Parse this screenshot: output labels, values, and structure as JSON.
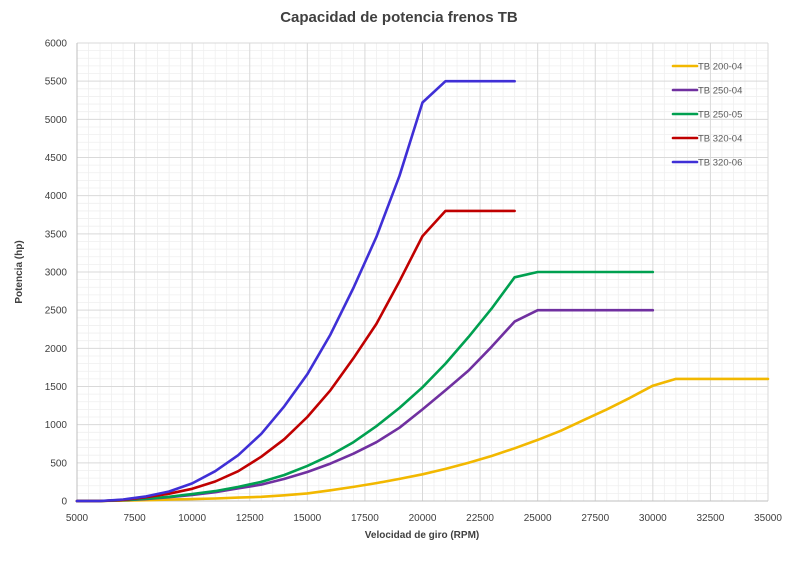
{
  "chart_data": {
    "type": "line",
    "title": "Capacidad de potencia frenos TB",
    "xlabel": "Velocidad de giro (RPM)",
    "ylabel": "Potencia (hp)",
    "xlim": [
      5000,
      35000
    ],
    "ylim": [
      0,
      6000
    ],
    "x_ticks": [
      5000,
      7500,
      10000,
      12500,
      15000,
      17500,
      20000,
      22500,
      25000,
      27500,
      30000,
      32500,
      35000
    ],
    "y_ticks": [
      0,
      500,
      1000,
      1500,
      2000,
      2500,
      3000,
      3500,
      4000,
      4500,
      5000,
      5500,
      6000
    ],
    "x_tick_labels": [
      "5000",
      "7500",
      "10000",
      "12500",
      "15000",
      "17500",
      "20000",
      "22500",
      "25000",
      "27500",
      "30000",
      "32500",
      "35000"
    ],
    "y_tick_labels": [
      "0",
      "500",
      "1000",
      "1500",
      "2000",
      "2500",
      "3000",
      "3500",
      "4000",
      "4500",
      "5000",
      "5500",
      "6000"
    ],
    "grid": true,
    "legend_position": "top-right",
    "series": [
      {
        "name": "TB 200-04",
        "color": "#f2b800",
        "points": [
          [
            5000,
            0
          ],
          [
            6000,
            0
          ],
          [
            7000,
            5
          ],
          [
            8000,
            10
          ],
          [
            9000,
            18
          ],
          [
            10000,
            25
          ],
          [
            11000,
            33
          ],
          [
            12000,
            45
          ],
          [
            13000,
            55
          ],
          [
            14000,
            75
          ],
          [
            15000,
            100
          ],
          [
            16000,
            140
          ],
          [
            17000,
            185
          ],
          [
            18000,
            235
          ],
          [
            19000,
            290
          ],
          [
            20000,
            350
          ],
          [
            21000,
            420
          ],
          [
            22000,
            500
          ],
          [
            23000,
            590
          ],
          [
            24000,
            690
          ],
          [
            25000,
            800
          ],
          [
            26000,
            920
          ],
          [
            27000,
            1060
          ],
          [
            28000,
            1200
          ],
          [
            29000,
            1350
          ],
          [
            30000,
            1510
          ],
          [
            31000,
            1600
          ],
          [
            32000,
            1600
          ],
          [
            33000,
            1600
          ],
          [
            34000,
            1600
          ],
          [
            35000,
            1600
          ]
        ]
      },
      {
        "name": "TB 250-04",
        "color": "#7030a0",
        "points": [
          [
            5000,
            0
          ],
          [
            6000,
            0
          ],
          [
            7000,
            10
          ],
          [
            8000,
            25
          ],
          [
            9000,
            50
          ],
          [
            10000,
            80
          ],
          [
            11000,
            115
          ],
          [
            12000,
            165
          ],
          [
            13000,
            215
          ],
          [
            14000,
            290
          ],
          [
            15000,
            380
          ],
          [
            16000,
            490
          ],
          [
            17000,
            620
          ],
          [
            18000,
            770
          ],
          [
            19000,
            960
          ],
          [
            20000,
            1200
          ],
          [
            21000,
            1450
          ],
          [
            22000,
            1710
          ],
          [
            23000,
            2020
          ],
          [
            24000,
            2350
          ],
          [
            25000,
            2500
          ],
          [
            26000,
            2500
          ],
          [
            27000,
            2500
          ],
          [
            28000,
            2500
          ],
          [
            29000,
            2500
          ],
          [
            30000,
            2500
          ]
        ]
      },
      {
        "name": "TB 250-05",
        "color": "#00a050",
        "points": [
          [
            5000,
            0
          ],
          [
            6000,
            0
          ],
          [
            7000,
            10
          ],
          [
            8000,
            30
          ],
          [
            9000,
            55
          ],
          [
            10000,
            90
          ],
          [
            11000,
            130
          ],
          [
            12000,
            185
          ],
          [
            13000,
            250
          ],
          [
            14000,
            340
          ],
          [
            15000,
            460
          ],
          [
            16000,
            600
          ],
          [
            17000,
            770
          ],
          [
            18000,
            980
          ],
          [
            19000,
            1220
          ],
          [
            20000,
            1490
          ],
          [
            21000,
            1800
          ],
          [
            22000,
            2150
          ],
          [
            23000,
            2520
          ],
          [
            24000,
            2930
          ],
          [
            25000,
            3000
          ],
          [
            26000,
            3000
          ],
          [
            27000,
            3000
          ],
          [
            28000,
            3000
          ],
          [
            29000,
            3000
          ],
          [
            30000,
            3000
          ]
        ]
      },
      {
        "name": "TB 320-04",
        "color": "#c00000",
        "points": [
          [
            5000,
            0
          ],
          [
            6000,
            0
          ],
          [
            7000,
            15
          ],
          [
            8000,
            50
          ],
          [
            9000,
            95
          ],
          [
            10000,
            160
          ],
          [
            11000,
            255
          ],
          [
            12000,
            390
          ],
          [
            13000,
            580
          ],
          [
            14000,
            810
          ],
          [
            15000,
            1100
          ],
          [
            16000,
            1450
          ],
          [
            17000,
            1870
          ],
          [
            18000,
            2320
          ],
          [
            19000,
            2880
          ],
          [
            20000,
            3470
          ],
          [
            21000,
            3800
          ],
          [
            22000,
            3800
          ],
          [
            23000,
            3800
          ],
          [
            24000,
            3800
          ]
        ]
      },
      {
        "name": "TB 320-06",
        "color": "#3f2fd6",
        "points": [
          [
            5000,
            0
          ],
          [
            6000,
            0
          ],
          [
            7000,
            20
          ],
          [
            8000,
            60
          ],
          [
            9000,
            125
          ],
          [
            10000,
            230
          ],
          [
            11000,
            390
          ],
          [
            12000,
            600
          ],
          [
            13000,
            880
          ],
          [
            14000,
            1240
          ],
          [
            15000,
            1660
          ],
          [
            16000,
            2180
          ],
          [
            17000,
            2790
          ],
          [
            18000,
            3460
          ],
          [
            19000,
            4260
          ],
          [
            20000,
            5220
          ],
          [
            21000,
            5500
          ],
          [
            22000,
            5500
          ],
          [
            23000,
            5500
          ],
          [
            24000,
            5500
          ]
        ]
      }
    ]
  }
}
